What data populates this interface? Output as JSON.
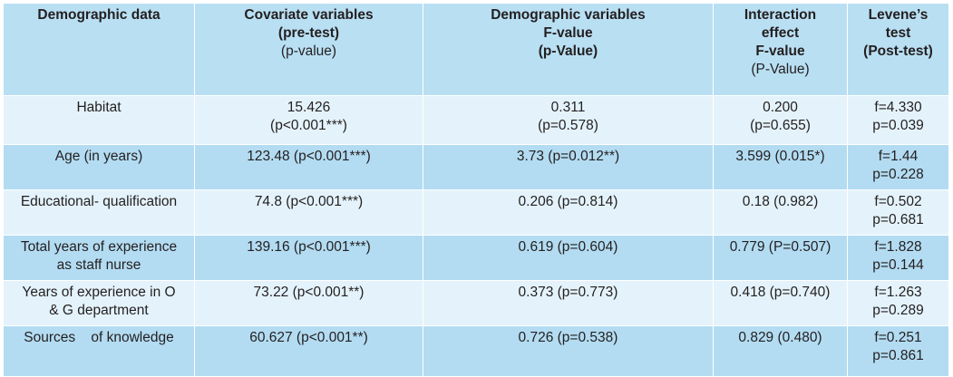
{
  "headers": {
    "col1": [
      "Demographic data"
    ],
    "col2_bold": [
      "Covariate variables",
      "(pre-test)"
    ],
    "col2_normal": [
      "(p-value)"
    ],
    "col3_bold": [
      "Demographic variables",
      "F-value",
      "(p-Value)"
    ],
    "col3_normal": [],
    "col4_bold": [
      "Interaction",
      "effect",
      "F-value"
    ],
    "col4_normal": [
      "(P-Value)"
    ],
    "col5_bold": [
      "Levene’s",
      "test",
      "(Post-test)"
    ]
  },
  "rows": [
    {
      "label": [
        "Habitat"
      ],
      "covariate": [
        "15.426",
        "(p<0.001***)"
      ],
      "demographic": [
        "0.311",
        "(p=0.578)"
      ],
      "interaction": [
        "0.200",
        "(p=0.655)"
      ],
      "levene": [
        "f=4.330",
        "p=0.039"
      ]
    },
    {
      "label": [
        "Age (in years)"
      ],
      "covariate": [
        "123.48 (p<0.001***)"
      ],
      "demographic": [
        "3.73 (p=0.012**)"
      ],
      "interaction": [
        "3.599 (0.015*)"
      ],
      "levene": [
        "f=1.44",
        "p=0.228"
      ]
    },
    {
      "label": [
        "Educational- qualification"
      ],
      "covariate": [
        "74.8 (p<0.001***)"
      ],
      "demographic": [
        "0.206 (p=0.814)"
      ],
      "interaction": [
        "0.18 (0.982)"
      ],
      "levene": [
        "f=0.502",
        "p=0.681"
      ]
    },
    {
      "label": [
        "Total years of experience",
        "as staff nurse"
      ],
      "covariate": [
        "139.16 (p<0.001***)"
      ],
      "demographic": [
        "0.619 (p=0.604)"
      ],
      "interaction": [
        "0.779 (P=0.507)"
      ],
      "levene": [
        "f=1.828",
        "p=0.144"
      ]
    },
    {
      "label": [
        "Years of experience in O",
        "& G department"
      ],
      "covariate": [
        "73.22 (p<0.001**)"
      ],
      "demographic": [
        "0.373 (p=0.773)"
      ],
      "interaction": [
        "0.418 (p=0.740)"
      ],
      "levene": [
        "f=1.263",
        "p=0.289"
      ]
    },
    {
      "label": [
        "Sources    of knowledge"
      ],
      "covariate": [
        "60.627 (p<0.001**)"
      ],
      "demographic": [
        "0.726 (p=0.538)"
      ],
      "interaction": [
        "0.829 (0.480)"
      ],
      "levene": [
        "f=0.251",
        "p=0.861"
      ]
    }
  ]
}
